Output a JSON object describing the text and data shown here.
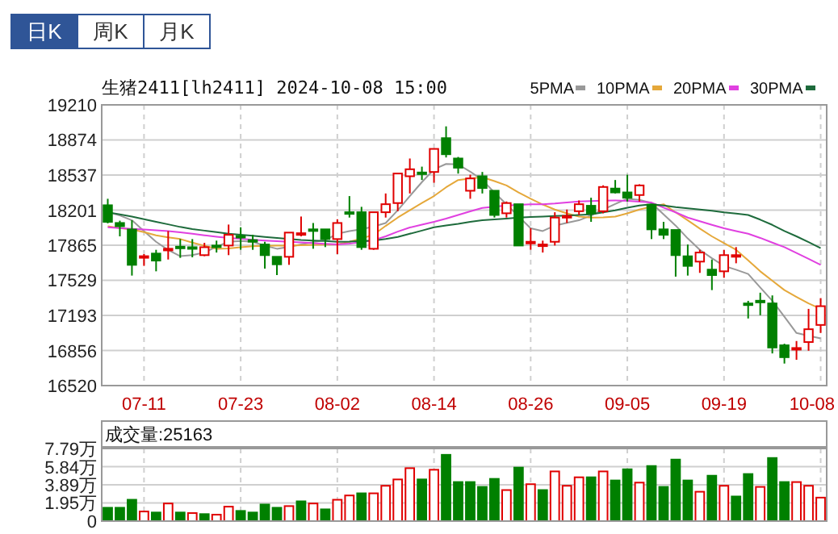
{
  "chart_data": [
    {
      "type": "candlestick",
      "title": "生猪2411[lh2411] 2024-10-08 15:00",
      "annotations": [
        "日K",
        "周K",
        "月K"
      ],
      "categories": [
        null,
        null,
        null,
        "07-11",
        null,
        null,
        null,
        null,
        null,
        null,
        null,
        "07-23",
        null,
        null,
        null,
        null,
        null,
        null,
        null,
        "08-02",
        null,
        null,
        null,
        null,
        null,
        null,
        null,
        "08-14",
        null,
        null,
        null,
        null,
        null,
        null,
        null,
        "08-26",
        null,
        null,
        null,
        null,
        null,
        null,
        null,
        "09-05",
        null,
        null,
        null,
        null,
        null,
        null,
        null,
        "09-19",
        null,
        null,
        null,
        null,
        null,
        null,
        null,
        "10-08"
      ],
      "ohlc": [
        [
          18248,
          18310,
          18075,
          18089
        ],
        [
          18078,
          18100,
          17950,
          18047
        ],
        [
          18016,
          18104,
          17574,
          17677
        ],
        [
          17750,
          17780,
          17667,
          17760
        ],
        [
          17785,
          17821,
          17615,
          17718
        ],
        [
          17821,
          18001,
          17728,
          17831
        ],
        [
          17851,
          17924,
          17744,
          17841
        ],
        [
          17846,
          17924,
          17749,
          17836
        ],
        [
          17770,
          17888,
          17760,
          17846
        ],
        [
          17862,
          17909,
          17795,
          17852
        ],
        [
          17862,
          18063,
          17770,
          17965
        ],
        [
          17954,
          18037,
          17821,
          17944
        ],
        [
          17914,
          17965,
          17821,
          17904
        ],
        [
          17872,
          17898,
          17641,
          17770
        ],
        [
          17754,
          17754,
          17579,
          17682
        ],
        [
          17754,
          17986,
          17677,
          17986
        ],
        [
          17965,
          18140,
          17950,
          17980
        ],
        [
          18017,
          18078,
          17831,
          18007
        ],
        [
          18017,
          18017,
          17847,
          17924
        ],
        [
          17924,
          18114,
          17780,
          18078
        ],
        [
          18181,
          18336,
          18130,
          18171
        ],
        [
          18181,
          18233,
          17821,
          17847
        ],
        [
          17831,
          18181,
          17821,
          18181
        ],
        [
          18181,
          18361,
          18130,
          18258
        ],
        [
          18269,
          18552,
          18191,
          18552
        ],
        [
          18526,
          18696,
          18361,
          18593
        ],
        [
          18562,
          18618,
          18490,
          18552
        ],
        [
          18567,
          18788,
          18464,
          18788
        ],
        [
          18891,
          19004,
          18706,
          18737
        ],
        [
          18696,
          18711,
          18551,
          18608
        ],
        [
          18387,
          18541,
          18310,
          18505
        ],
        [
          18526,
          18567,
          18361,
          18413
        ],
        [
          18387,
          18387,
          18130,
          18155
        ],
        [
          18171,
          18284,
          18130,
          18269
        ],
        [
          18258,
          18258,
          17862,
          17862
        ],
        [
          17888,
          18027,
          17821,
          17898
        ],
        [
          17857,
          17909,
          17795,
          17872
        ],
        [
          17898,
          18181,
          17862,
          18130
        ],
        [
          18135,
          18207,
          18078,
          18145
        ],
        [
          18191,
          18294,
          18155,
          18258
        ],
        [
          18243,
          18320,
          18089,
          18171
        ],
        [
          18191,
          18439,
          18171,
          18423
        ],
        [
          18408,
          18490,
          18361,
          18371
        ],
        [
          18371,
          18541,
          18284,
          18320
        ],
        [
          18346,
          18449,
          18284,
          18438
        ],
        [
          18253,
          18253,
          17924,
          18017
        ],
        [
          18017,
          18089,
          17924,
          17965
        ],
        [
          18011,
          18011,
          17564,
          17770
        ],
        [
          17759,
          17872,
          17574,
          17667
        ],
        [
          17708,
          17821,
          17600,
          17795
        ],
        [
          17631,
          17728,
          17435,
          17579
        ],
        [
          17615,
          17821,
          17553,
          17770
        ],
        [
          17760,
          17847,
          17692,
          17770
        ],
        [
          17307,
          17332,
          17163,
          17297
        ],
        [
          17333,
          17410,
          17194,
          17323
        ],
        [
          17307,
          17384,
          16828,
          16885
        ],
        [
          16906,
          16921,
          16731,
          16792
        ],
        [
          16870,
          16947,
          16767,
          16880
        ],
        [
          16937,
          17255,
          16854,
          17060
        ],
        [
          17101,
          17358,
          17024,
          17281
        ]
      ],
      "colors": [
        "#008000",
        "#008000",
        "#008000",
        "#e00000",
        "#008000",
        "#e00000",
        "#008000",
        "#008000",
        "#e00000",
        "#008000",
        "#e00000",
        "#008000",
        "#008000",
        "#008000",
        "#008000",
        "#e00000",
        "#e00000",
        "#008000",
        "#008000",
        "#e00000",
        "#008000",
        "#008000",
        "#e00000",
        "#e00000",
        "#e00000",
        "#e00000",
        "#008000",
        "#e00000",
        "#008000",
        "#008000",
        "#e00000",
        "#008000",
        "#008000",
        "#e00000",
        "#008000",
        "#e00000",
        "#e00000",
        "#e00000",
        "#e00000",
        "#e00000",
        "#008000",
        "#e00000",
        "#008000",
        "#008000",
        "#e00000",
        "#008000",
        "#008000",
        "#008000",
        "#008000",
        "#e00000",
        "#008000",
        "#e00000",
        "#e00000",
        "#008000",
        "#008000",
        "#008000",
        "#008000",
        "#e00000",
        "#e00000",
        "#e00000"
      ],
      "series": [
        {
          "name": "5PMA",
          "type": "line",
          "color": "#999999",
          "values": [
            18181,
            18150,
            18104,
            18000,
            17898,
            17820,
            17760,
            17770,
            17795,
            17850,
            17898,
            17905,
            17898,
            17860,
            17831,
            17850,
            17872,
            17895,
            17914,
            17975,
            18000,
            18017,
            18045,
            18078,
            18200,
            18336,
            18470,
            18593,
            18644,
            18640,
            18570,
            18490,
            18370,
            18258,
            18140,
            18027,
            18001,
            18053,
            18080,
            18104,
            18150,
            18207,
            18260,
            18310,
            18300,
            18269,
            18160,
            18053,
            17930,
            17821,
            17740,
            17667,
            17630,
            17590,
            17460,
            17333,
            17180,
            17024,
            16998,
            16972
          ]
        },
        {
          "name": "10PMA",
          "type": "line",
          "color": "#e5a83a",
          "values": [
            18047,
            18030,
            18016,
            17990,
            17960,
            17940,
            17924,
            17890,
            17860,
            17831,
            17835,
            17845,
            17855,
            17860,
            17862,
            17862,
            17865,
            17868,
            17870,
            17872,
            17898,
            17930,
            17965,
            18050,
            18130,
            18200,
            18270,
            18336,
            18420,
            18490,
            18505,
            18516,
            18480,
            18438,
            18370,
            18310,
            18255,
            18207,
            18170,
            18140,
            18130,
            18132,
            18140,
            18170,
            18207,
            18235,
            18258,
            18180,
            18104,
            18025,
            17950,
            17885,
            17821,
            17720,
            17615,
            17525,
            17435,
            17370,
            17307,
            17255
          ]
        },
        {
          "name": "20PMA",
          "type": "line",
          "color": "#e040e0",
          "values": [
            18037,
            18030,
            18022,
            18015,
            18008,
            18001,
            17988,
            17975,
            17960,
            17947,
            17934,
            17926,
            17918,
            17910,
            17904,
            17898,
            17892,
            17885,
            17878,
            17872,
            17880,
            17895,
            17914,
            17950,
            17995,
            18035,
            18062,
            18089,
            18120,
            18155,
            18190,
            18222,
            18235,
            18245,
            18252,
            18258,
            18258,
            18265,
            18275,
            18284,
            18288,
            18292,
            18294,
            18290,
            18282,
            18274,
            18225,
            18180,
            18130,
            18095,
            18060,
            18027,
            18000,
            17975,
            17935,
            17890,
            17847,
            17790,
            17735,
            17677
          ]
        },
        {
          "name": "30PMA",
          "type": "line",
          "color": "#1e6b3c",
          "values": [
            18181,
            18160,
            18140,
            18115,
            18090,
            18065,
            18040,
            18020,
            18005,
            17990,
            17975,
            17965,
            17955,
            17945,
            17935,
            17925,
            17915,
            17909,
            17905,
            17898,
            17900,
            17905,
            17909,
            17925,
            17945,
            17975,
            18005,
            18037,
            18055,
            18070,
            18090,
            18104,
            18112,
            18120,
            18130,
            18135,
            18140,
            18145,
            18150,
            18155,
            18160,
            18180,
            18200,
            18225,
            18245,
            18258,
            18245,
            18230,
            18218,
            18207,
            18195,
            18180,
            18168,
            18155,
            18110,
            18060,
            18001,
            17950,
            17895,
            17837
          ]
        }
      ],
      "ylim": [
        16520,
        19210
      ],
      "yticks": [
        16520,
        16856,
        17193,
        17529,
        17865,
        18201,
        18537,
        18874,
        19210
      ],
      "grid": true,
      "legend": "top right"
    },
    {
      "type": "bar",
      "title": "成交量:25163",
      "categories": [
        null,
        null,
        null,
        null,
        null,
        null,
        null,
        null,
        null,
        null,
        null,
        null,
        null,
        null,
        null,
        null,
        null,
        null,
        null,
        null,
        null,
        null,
        null,
        null,
        null,
        null,
        null,
        null,
        null,
        null,
        null,
        null,
        null,
        null,
        null,
        null,
        null,
        null,
        null,
        null,
        null,
        null,
        null,
        null,
        null,
        null,
        null,
        null,
        null,
        null,
        null,
        null,
        null,
        null,
        null,
        null,
        null,
        null,
        null,
        null
      ],
      "values": [
        1.43,
        1.43,
        2.29,
        1.03,
        0.92,
        1.89,
        0.92,
        0.86,
        0.75,
        0.69,
        1.55,
        1.09,
        0.92,
        1.78,
        1.43,
        1.61,
        2.12,
        1.89,
        1.26,
        2.29,
        2.75,
        2.98,
        2.98,
        3.79,
        4.47,
        5.68,
        4.47,
        5.51,
        7.11,
        4.19,
        4.19,
        3.67,
        4.53,
        3.33,
        5.74,
        3.96,
        3.33,
        5.33,
        3.79,
        4.7,
        4.7,
        5.33,
        4.36,
        5.56,
        4.13,
        5.91,
        3.67,
        6.6,
        4.36,
        3.15,
        4.87,
        3.79,
        2.64,
        5.05,
        3.67,
        6.77,
        4.19,
        4.19,
        3.79,
        2.52
      ],
      "colors": [
        "#008000",
        "#008000",
        "#008000",
        "#e00000",
        "#008000",
        "#e00000",
        "#008000",
        "#e00000",
        "#008000",
        "#e00000",
        "#e00000",
        "#008000",
        "#008000",
        "#008000",
        "#008000",
        "#e00000",
        "#008000",
        "#e00000",
        "#008000",
        "#e00000",
        "#e00000",
        "#008000",
        "#e00000",
        "#e00000",
        "#e00000",
        "#e00000",
        "#008000",
        "#e00000",
        "#008000",
        "#008000",
        "#008000",
        "#008000",
        "#008000",
        "#e00000",
        "#008000",
        "#e00000",
        "#008000",
        "#e00000",
        "#e00000",
        "#e00000",
        "#008000",
        "#e00000",
        "#008000",
        "#008000",
        "#e00000",
        "#008000",
        "#008000",
        "#008000",
        "#008000",
        "#e00000",
        "#008000",
        "#e00000",
        "#008000",
        "#008000",
        "#e00000",
        "#008000",
        "#008000",
        "#e00000",
        "#e00000",
        "#e00000"
      ],
      "ylim": [
        0,
        7.79
      ],
      "yticks": [
        0,
        {
          "value": 1.95,
          "label": "1.95万"
        },
        {
          "value": 3.89,
          "label": "3.89万"
        },
        {
          "value": 5.84,
          "label": "5.84万"
        },
        {
          "value": 7.79,
          "label": "7.79万"
        }
      ],
      "grid": true,
      "tick_labels": "y"
    }
  ]
}
